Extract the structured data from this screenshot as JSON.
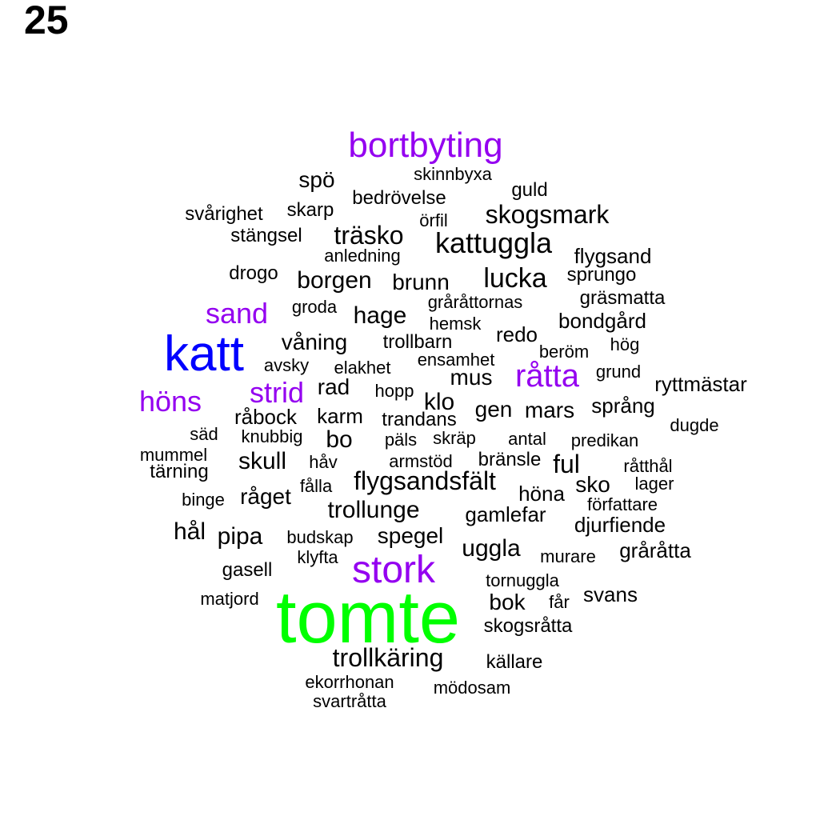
{
  "page_number": "25",
  "colors": {
    "default": "#000000",
    "purple": "#9400f0",
    "blue": "#0000ff",
    "green": "#00ff00"
  },
  "words": [
    {
      "text": "tomte",
      "color": "green"
    },
    {
      "text": "katt",
      "color": "blue"
    },
    {
      "text": "bortbyting",
      "color": "purple"
    },
    {
      "text": "stork",
      "color": "purple"
    },
    {
      "text": "råtta",
      "color": "purple"
    },
    {
      "text": "sand",
      "color": "purple"
    },
    {
      "text": "höns",
      "color": "purple"
    },
    {
      "text": "strid",
      "color": "purple"
    },
    {
      "text": "spö",
      "color": "default"
    },
    {
      "text": "skinnbyxa",
      "color": "default"
    },
    {
      "text": "guld",
      "color": "default"
    },
    {
      "text": "bedrövelse",
      "color": "default"
    },
    {
      "text": "svårighet",
      "color": "default"
    },
    {
      "text": "skarp",
      "color": "default"
    },
    {
      "text": "örfil",
      "color": "default"
    },
    {
      "text": "skogsmark",
      "color": "default"
    },
    {
      "text": "stängsel",
      "color": "default"
    },
    {
      "text": "träsko",
      "color": "default"
    },
    {
      "text": "kattuggla",
      "color": "default"
    },
    {
      "text": "anledning",
      "color": "default"
    },
    {
      "text": "flygsand",
      "color": "default"
    },
    {
      "text": "drogo",
      "color": "default"
    },
    {
      "text": "borgen",
      "color": "default"
    },
    {
      "text": "brunn",
      "color": "default"
    },
    {
      "text": "lucka",
      "color": "default"
    },
    {
      "text": "sprungo",
      "color": "default"
    },
    {
      "text": "groda",
      "color": "default"
    },
    {
      "text": "gråråttornas",
      "color": "default"
    },
    {
      "text": "gräsmatta",
      "color": "default"
    },
    {
      "text": "hage",
      "color": "default"
    },
    {
      "text": "hemsk",
      "color": "default"
    },
    {
      "text": "bondgård",
      "color": "default"
    },
    {
      "text": "redo",
      "color": "default"
    },
    {
      "text": "våning",
      "color": "default"
    },
    {
      "text": "trollbarn",
      "color": "default"
    },
    {
      "text": "hög",
      "color": "default"
    },
    {
      "text": "beröm",
      "color": "default"
    },
    {
      "text": "ensamhet",
      "color": "default"
    },
    {
      "text": "avsky",
      "color": "default"
    },
    {
      "text": "elakhet",
      "color": "default"
    },
    {
      "text": "grund",
      "color": "default"
    },
    {
      "text": "mus",
      "color": "default"
    },
    {
      "text": "ryttmästar",
      "color": "default"
    },
    {
      "text": "rad",
      "color": "default"
    },
    {
      "text": "hopp",
      "color": "default"
    },
    {
      "text": "klo",
      "color": "default"
    },
    {
      "text": "språng",
      "color": "default"
    },
    {
      "text": "råbock",
      "color": "default"
    },
    {
      "text": "karm",
      "color": "default"
    },
    {
      "text": "trandans",
      "color": "default"
    },
    {
      "text": "gen",
      "color": "default"
    },
    {
      "text": "mars",
      "color": "default"
    },
    {
      "text": "dugde",
      "color": "default"
    },
    {
      "text": "säd",
      "color": "default"
    },
    {
      "text": "knubbig",
      "color": "default"
    },
    {
      "text": "bo",
      "color": "default"
    },
    {
      "text": "päls",
      "color": "default"
    },
    {
      "text": "skräp",
      "color": "default"
    },
    {
      "text": "antal",
      "color": "default"
    },
    {
      "text": "predikan",
      "color": "default"
    },
    {
      "text": "mummel",
      "color": "default"
    },
    {
      "text": "skull",
      "color": "default"
    },
    {
      "text": "håv",
      "color": "default"
    },
    {
      "text": "armstöd",
      "color": "default"
    },
    {
      "text": "bränsle",
      "color": "default"
    },
    {
      "text": "ful",
      "color": "default"
    },
    {
      "text": "råtthål",
      "color": "default"
    },
    {
      "text": "tärning",
      "color": "default"
    },
    {
      "text": "fålla",
      "color": "default"
    },
    {
      "text": "flygsandsfält",
      "color": "default"
    },
    {
      "text": "sko",
      "color": "default"
    },
    {
      "text": "lager",
      "color": "default"
    },
    {
      "text": "binge",
      "color": "default"
    },
    {
      "text": "råget",
      "color": "default"
    },
    {
      "text": "höna",
      "color": "default"
    },
    {
      "text": "trollunge",
      "color": "default"
    },
    {
      "text": "författare",
      "color": "default"
    },
    {
      "text": "gamlefar",
      "color": "default"
    },
    {
      "text": "djurfiende",
      "color": "default"
    },
    {
      "text": "hål",
      "color": "default"
    },
    {
      "text": "pipa",
      "color": "default"
    },
    {
      "text": "budskap",
      "color": "default"
    },
    {
      "text": "spegel",
      "color": "default"
    },
    {
      "text": "uggla",
      "color": "default"
    },
    {
      "text": "gråråtta",
      "color": "default"
    },
    {
      "text": "klyfta",
      "color": "default"
    },
    {
      "text": "murare",
      "color": "default"
    },
    {
      "text": "gasell",
      "color": "default"
    },
    {
      "text": "tornuggla",
      "color": "default"
    },
    {
      "text": "svans",
      "color": "default"
    },
    {
      "text": "matjord",
      "color": "default"
    },
    {
      "text": "bok",
      "color": "default"
    },
    {
      "text": "får",
      "color": "default"
    },
    {
      "text": "skogsråtta",
      "color": "default"
    },
    {
      "text": "trollkäring",
      "color": "default"
    },
    {
      "text": "källare",
      "color": "default"
    },
    {
      "text": "ekorrhonan",
      "color": "default"
    },
    {
      "text": "mödosam",
      "color": "default"
    },
    {
      "text": "svartråtta",
      "color": "default"
    }
  ]
}
